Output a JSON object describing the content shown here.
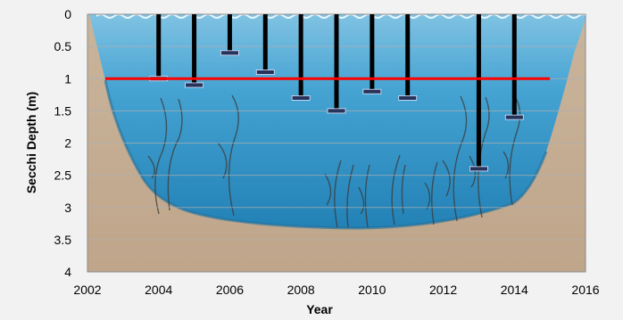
{
  "chart_data": {
    "type": "bar",
    "xlabel": "Year",
    "ylabel": "Secchi Depth (m)",
    "xlim": [
      2002,
      2016
    ],
    "ylim": [
      0,
      4
    ],
    "y_reversed": true,
    "x_ticks": [
      "2002",
      "2004",
      "2006",
      "2008",
      "2010",
      "2012",
      "2014",
      "2016"
    ],
    "y_ticks": [
      "0",
      "0.5",
      "1",
      "1.5",
      "2",
      "2.5",
      "3",
      "3.5",
      "4"
    ],
    "grid": true,
    "legend": "none",
    "points": [
      {
        "x": 2004,
        "y": 1.0
      },
      {
        "x": 2005,
        "y": 1.1
      },
      {
        "x": 2006,
        "y": 0.6
      },
      {
        "x": 2007,
        "y": 0.9
      },
      {
        "x": 2008,
        "y": 1.3
      },
      {
        "x": 2009,
        "y": 1.5
      },
      {
        "x": 2010,
        "y": 1.2
      },
      {
        "x": 2011,
        "y": 1.3
      },
      {
        "x": 2013,
        "y": 2.4
      },
      {
        "x": 2014,
        "y": 1.6
      }
    ],
    "reference_line": {
      "y": 1.0,
      "x_start": 2002.5,
      "x_end": 2015,
      "color": "#ff0000"
    },
    "colors": {
      "water": "#2a8ec6",
      "sediment": "#c8ad8f",
      "bar": "#000000",
      "cap": "#27335a",
      "grid": "#b0b0b0"
    }
  }
}
